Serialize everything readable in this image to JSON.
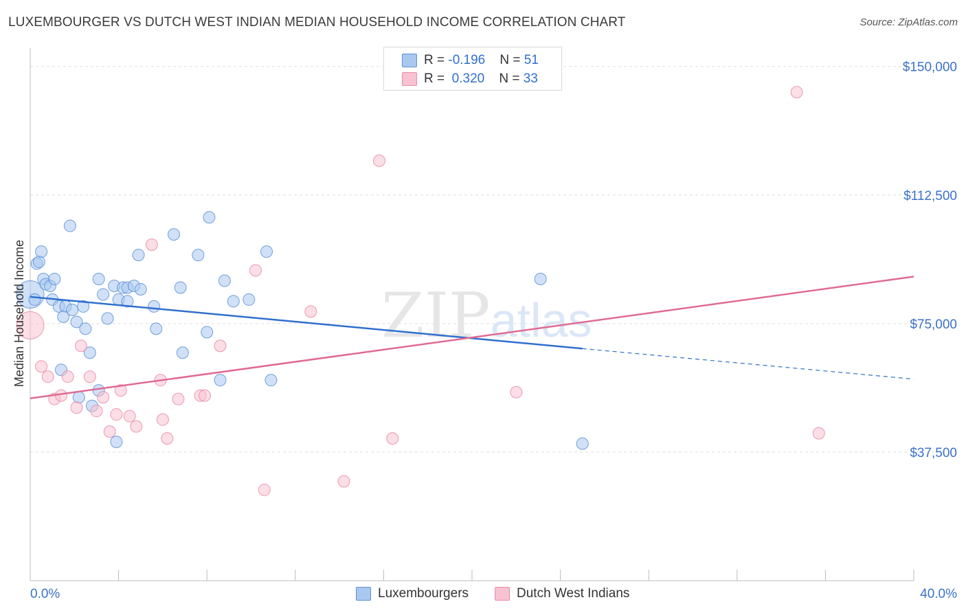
{
  "header": {
    "title": "LUXEMBOURGER VS DUTCH WEST INDIAN MEDIAN HOUSEHOLD INCOME CORRELATION CHART",
    "source": "Source: ZipAtlas.com"
  },
  "legend": {
    "rows": [
      {
        "r_label": "R = ",
        "r_value": "-0.196",
        "n_label": "N = ",
        "n_value": "51"
      },
      {
        "r_label": "R = ",
        "r_value": " 0.320",
        "n_label": "N = ",
        "n_value": "33"
      }
    ]
  },
  "colors": {
    "blue_fill": "#a9c8f0",
    "blue_stroke": "#5b8fd6",
    "blue_line": "#2f6fcf",
    "pink_fill": "#f7c2d2",
    "pink_stroke": "#e88aa6",
    "pink_line": "#e06a93",
    "axis_text": "#3b72c9",
    "grid": "#dedede"
  },
  "chart_data": {
    "type": "scatter",
    "title": "LUXEMBOURGER VS DUTCH WEST INDIAN MEDIAN HOUSEHOLD INCOME CORRELATION CHART",
    "xlabel": "",
    "ylabel": "Median Household Income",
    "xlim": [
      0,
      40
    ],
    "ylim": [
      0,
      153750
    ],
    "x_tick_labels": [
      "0.0%",
      "40.0%"
    ],
    "y_ticks": [
      37500,
      75000,
      112500,
      150000
    ],
    "y_tick_labels": [
      "$37,500",
      "$75,000",
      "$112,500",
      "$150,000"
    ],
    "grid": true,
    "watermark": "ZIPatlas",
    "legend_position": "bottom",
    "series": [
      {
        "name": "Luxembourgers",
        "color": "#a9c8f0",
        "trend": {
          "x": [
            0,
            25
          ],
          "y": [
            82800,
            67700
          ],
          "dashed_extension_to_x": 40,
          "dashed_end_y": 58800
        },
        "points": [
          {
            "x": 0.0,
            "y": 83500,
            "big": true
          },
          {
            "x": 0.3,
            "y": 92500
          },
          {
            "x": 0.4,
            "y": 93000
          },
          {
            "x": 0.5,
            "y": 96000
          },
          {
            "x": 0.6,
            "y": 88000
          },
          {
            "x": 0.7,
            "y": 86500
          },
          {
            "x": 0.9,
            "y": 86000
          },
          {
            "x": 1.1,
            "y": 88000
          },
          {
            "x": 1.0,
            "y": 82000
          },
          {
            "x": 1.3,
            "y": 80000
          },
          {
            "x": 1.6,
            "y": 80000
          },
          {
            "x": 1.5,
            "y": 77000
          },
          {
            "x": 1.9,
            "y": 79000
          },
          {
            "x": 2.4,
            "y": 80000
          },
          {
            "x": 2.1,
            "y": 75500
          },
          {
            "x": 2.5,
            "y": 73500
          },
          {
            "x": 1.8,
            "y": 103500
          },
          {
            "x": 2.7,
            "y": 66500
          },
          {
            "x": 1.4,
            "y": 61500
          },
          {
            "x": 2.2,
            "y": 53500
          },
          {
            "x": 3.1,
            "y": 55500
          },
          {
            "x": 2.8,
            "y": 51000
          },
          {
            "x": 3.1,
            "y": 88000
          },
          {
            "x": 3.3,
            "y": 83500
          },
          {
            "x": 3.5,
            "y": 76500
          },
          {
            "x": 3.8,
            "y": 86000
          },
          {
            "x": 4.2,
            "y": 85500
          },
          {
            "x": 4.4,
            "y": 85500
          },
          {
            "x": 4.7,
            "y": 86000
          },
          {
            "x": 5.0,
            "y": 85000
          },
          {
            "x": 4.0,
            "y": 82000
          },
          {
            "x": 4.4,
            "y": 81500
          },
          {
            "x": 4.9,
            "y": 95000
          },
          {
            "x": 5.6,
            "y": 80000
          },
          {
            "x": 5.7,
            "y": 73500
          },
          {
            "x": 6.5,
            "y": 101000
          },
          {
            "x": 6.8,
            "y": 85500
          },
          {
            "x": 6.9,
            "y": 66500
          },
          {
            "x": 7.6,
            "y": 95000
          },
          {
            "x": 8.0,
            "y": 72500
          },
          {
            "x": 8.1,
            "y": 106000
          },
          {
            "x": 8.6,
            "y": 58500
          },
          {
            "x": 8.8,
            "y": 87500
          },
          {
            "x": 9.2,
            "y": 81500
          },
          {
            "x": 9.9,
            "y": 82000
          },
          {
            "x": 10.7,
            "y": 96000
          },
          {
            "x": 10.9,
            "y": 58500
          },
          {
            "x": 3.9,
            "y": 40500
          },
          {
            "x": 23.1,
            "y": 88000
          },
          {
            "x": 25.0,
            "y": 40000
          },
          {
            "x": 0.2,
            "y": 82000
          }
        ]
      },
      {
        "name": "Dutch West Indians",
        "color": "#f7c2d2",
        "trend": {
          "x": [
            0,
            40
          ],
          "y": [
            53200,
            88700
          ]
        },
        "points": [
          {
            "x": 0.0,
            "y": 74500,
            "big": true
          },
          {
            "x": 0.5,
            "y": 62500
          },
          {
            "x": 0.8,
            "y": 59500
          },
          {
            "x": 1.1,
            "y": 53000
          },
          {
            "x": 1.4,
            "y": 54000
          },
          {
            "x": 1.7,
            "y": 59500
          },
          {
            "x": 2.1,
            "y": 50500
          },
          {
            "x": 2.3,
            "y": 68500
          },
          {
            "x": 2.7,
            "y": 59500
          },
          {
            "x": 3.0,
            "y": 49500
          },
          {
            "x": 3.3,
            "y": 53500
          },
          {
            "x": 3.6,
            "y": 43500
          },
          {
            "x": 3.9,
            "y": 48500
          },
          {
            "x": 4.1,
            "y": 55500
          },
          {
            "x": 4.5,
            "y": 48000
          },
          {
            "x": 4.8,
            "y": 45000
          },
          {
            "x": 5.5,
            "y": 98000
          },
          {
            "x": 5.9,
            "y": 58500
          },
          {
            "x": 6.0,
            "y": 47000
          },
          {
            "x": 6.2,
            "y": 41500
          },
          {
            "x": 6.7,
            "y": 53000
          },
          {
            "x": 7.7,
            "y": 54000
          },
          {
            "x": 7.9,
            "y": 54000
          },
          {
            "x": 8.6,
            "y": 68500
          },
          {
            "x": 10.2,
            "y": 90500
          },
          {
            "x": 10.6,
            "y": 26500
          },
          {
            "x": 12.7,
            "y": 78500
          },
          {
            "x": 14.2,
            "y": 29000
          },
          {
            "x": 15.8,
            "y": 122500
          },
          {
            "x": 16.4,
            "y": 41500
          },
          {
            "x": 22.0,
            "y": 55000
          },
          {
            "x": 34.7,
            "y": 142500
          },
          {
            "x": 35.7,
            "y": 43000
          }
        ]
      }
    ]
  }
}
